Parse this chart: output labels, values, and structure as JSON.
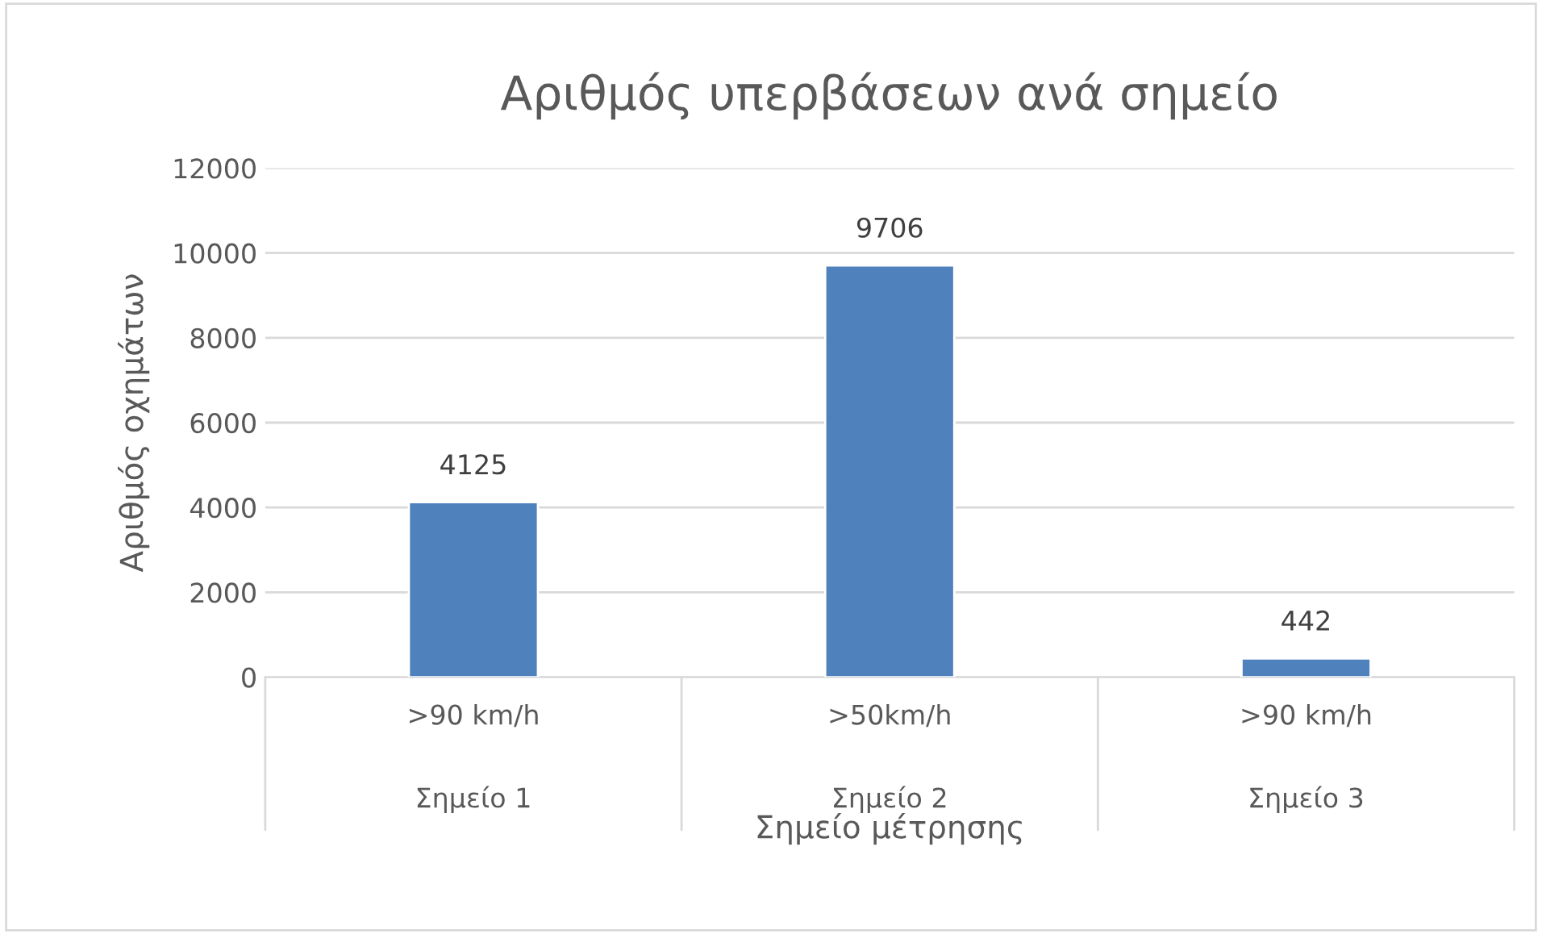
{
  "chart_data": {
    "type": "bar",
    "title": "Αριθμός υπερβάσεων ανά σημείο",
    "xlabel": "Σημείο μέτρησης",
    "ylabel": "Αριθμός οχημάτων",
    "categories": [
      ">90 km/h\nΣημείο 1",
      ">50km/h\nΣημείο 2",
      ">90 km/h\nΣημείο 3"
    ],
    "values": [
      4125,
      9706,
      442
    ],
    "color": "#4f81bd",
    "ylim": [
      0,
      12000
    ],
    "yticks": [
      0,
      2000,
      4000,
      6000,
      8000,
      10000,
      12000
    ],
    "grid": "y",
    "data_labels": true
  }
}
